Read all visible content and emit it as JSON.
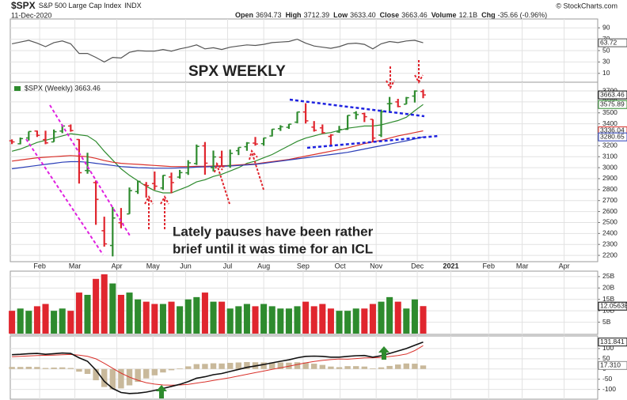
{
  "header": {
    "symbol": "$SPX",
    "name": "S&P 500 Large Cap Index",
    "exchange": "INDX",
    "date": "11-Dec-2020",
    "credit": "© StockCharts.com",
    "quote": [
      {
        "label": "Open",
        "value": "3694.73"
      },
      {
        "label": "High",
        "value": "3712.39"
      },
      {
        "label": "Low",
        "value": "3633.40"
      },
      {
        "label": "Close",
        "value": "3663.46"
      },
      {
        "label": "Volume",
        "value": "12.1B"
      },
      {
        "label": "Chg",
        "value": "-35.66 (-0.96%)"
      }
    ]
  },
  "annotations": {
    "title": "SPX WEEKLY",
    "note": [
      "Lately pauses have been rather",
      "brief until it was time for an ICL"
    ]
  },
  "chart_data": [
    {
      "type": "line",
      "color": "#555555",
      "ylim": [
        0,
        100
      ],
      "yticks": [
        90,
        70,
        50,
        30,
        10
      ],
      "grid": true,
      "values": [
        62,
        65,
        68,
        63,
        57,
        64,
        67,
        62,
        45,
        45,
        38,
        30,
        38,
        37,
        47,
        50,
        49,
        49,
        52,
        49,
        53,
        56,
        60,
        53,
        55,
        52,
        56,
        58,
        60,
        59,
        61,
        64,
        65,
        66,
        70,
        63,
        58,
        56,
        54,
        57,
        62,
        63,
        61,
        53,
        62,
        66,
        64,
        67,
        68,
        63.72
      ]
    },
    {
      "type": "ohlc",
      "label": "$SPX (Weekly) 3663.46",
      "up_color": "#2e8b2e",
      "down_color": "#e0262e",
      "grid": true,
      "ylim": [
        2150,
        3765
      ],
      "yticks": [
        2200,
        2300,
        2400,
        2500,
        2600,
        2700,
        2800,
        2900,
        3000,
        3100,
        3200,
        3300,
        3400,
        3500,
        3600,
        3700
      ],
      "xlim": [
        -0.2,
        69.8
      ],
      "xticks": [
        {
          "value": 3.3,
          "label": "Feb"
        },
        {
          "value": 7.5,
          "label": "Mar"
        },
        {
          "value": 12.5,
          "label": "Apr"
        },
        {
          "value": 16.8,
          "label": "May"
        },
        {
          "value": 20.7,
          "label": "Jun"
        },
        {
          "value": 25.7,
          "label": "Jul"
        },
        {
          "value": 30.0,
          "label": "Aug"
        },
        {
          "value": 34.7,
          "label": "Sep"
        },
        {
          "value": 39.1,
          "label": "Oct"
        },
        {
          "value": 43.4,
          "label": "Nov"
        },
        {
          "value": 48.3,
          "label": "Dec"
        },
        {
          "value": 52.3,
          "label": "2021"
        },
        {
          "value": 56.8,
          "label": "Feb"
        },
        {
          "value": 60.8,
          "label": "Mar"
        },
        {
          "value": 65.8,
          "label": "Apr"
        }
      ],
      "open": [
        3245,
        3218,
        3271,
        3334,
        3256,
        3235,
        3334,
        3380,
        3257,
        2974,
        2864,
        2425,
        2290,
        2498,
        2578,
        2782,
        2845,
        2855,
        2815,
        2915,
        2914,
        2953,
        3038,
        3199,
        3000,
        3095,
        3018,
        3155,
        3191,
        3224,
        3219,
        3289,
        3356,
        3368,
        3415,
        3508,
        3370,
        3363,
        3285,
        3326,
        3350,
        3500,
        3493,
        3441,
        3297,
        3583,
        3600,
        3579,
        3653,
        3694.73
      ],
      "high": [
        3258,
        3275,
        3330,
        3338,
        3337,
        3348,
        3385,
        3394,
        3260,
        3136,
        2883,
        2553,
        2641,
        2632,
        2819,
        2880,
        2869,
        2965,
        2932,
        2955,
        2980,
        3068,
        3211,
        3234,
        3156,
        3155,
        3165,
        3185,
        3233,
        3280,
        3272,
        3352,
        3387,
        3399,
        3509,
        3588,
        3425,
        3394,
        3306,
        3381,
        3478,
        3515,
        3502,
        3441,
        3530,
        3645,
        3628,
        3645,
        3705,
        3712.39
      ],
      "low": [
        3215,
        3213,
        3247,
        3280,
        3214,
        3235,
        3315,
        3328,
        2855,
        2945,
        2479,
        2280,
        2191,
        2447,
        2578,
        2761,
        2727,
        2797,
        2797,
        2767,
        2900,
        2934,
        3025,
        2936,
        2966,
        3008,
        2999,
        3115,
        3154,
        3201,
        3200,
        3285,
        3335,
        3354,
        3405,
        3403,
        3329,
        3310,
        3209,
        3317,
        3345,
        3441,
        3416,
        3233,
        3279,
        3512,
        3551,
        3579,
        3594,
        3633.4
      ],
      "close": [
        3235,
        3265,
        3330,
        3295,
        3226,
        3328,
        3380,
        3338,
        2954,
        2972,
        2711,
        2305,
        2541,
        2489,
        2790,
        2875,
        2837,
        2831,
        2930,
        2864,
        2955,
        3044,
        3194,
        3041,
        3098,
        3009,
        3130,
        3185,
        3225,
        3216,
        3271,
        3351,
        3373,
        3397,
        3508,
        3427,
        3341,
        3319,
        3298,
        3348,
        3477,
        3484,
        3465,
        3270,
        3510,
        3585,
        3558,
        3638,
        3699,
        3663.46
      ],
      "overlays": [
        {
          "color": "#2e8b2e",
          "values": [
            3150,
            3170,
            3200,
            3230,
            3250,
            3270,
            3290,
            3310,
            3300,
            3290,
            3240,
            3150,
            3070,
            2990,
            2930,
            2880,
            2830,
            2790,
            2770,
            2770,
            2800,
            2830,
            2870,
            2890,
            2920,
            2940,
            2970,
            3000,
            3040,
            3060,
            3090,
            3120,
            3160,
            3200,
            3240,
            3270,
            3290,
            3310,
            3320,
            3340,
            3360,
            3370,
            3380,
            3380,
            3390,
            3410,
            3430,
            3460,
            3520,
            3575.89
          ]
        },
        {
          "color": "#d9312b",
          "values": [
            3060,
            3070,
            3080,
            3090,
            3095,
            3100,
            3105,
            3110,
            3105,
            3100,
            3085,
            3065,
            3050,
            3040,
            3035,
            3030,
            3025,
            3020,
            3015,
            3010,
            3010,
            3010,
            3012,
            3012,
            3015,
            3018,
            3020,
            3025,
            3030,
            3035,
            3045,
            3055,
            3065,
            3075,
            3090,
            3105,
            3120,
            3135,
            3150,
            3165,
            3180,
            3200,
            3220,
            3235,
            3250,
            3270,
            3290,
            3305,
            3320,
            3336.04
          ]
        },
        {
          "color": "#2b3fb8",
          "values": [
            2990,
            3000,
            3010,
            3020,
            3030,
            3040,
            3050,
            3055,
            3055,
            3050,
            3040,
            3030,
            3020,
            3010,
            3005,
            3000,
            2998,
            2995,
            2995,
            2995,
            2998,
            3000,
            3005,
            3008,
            3010,
            3012,
            3015,
            3020,
            3025,
            3030,
            3040,
            3050,
            3060,
            3070,
            3080,
            3090,
            3100,
            3110,
            3120,
            3130,
            3140,
            3155,
            3170,
            3185,
            3200,
            3215,
            3230,
            3245,
            3262,
            3280.65
          ]
        }
      ]
    },
    {
      "type": "bar",
      "grid": true,
      "ylim": [
        0,
        26.7
      ],
      "yticks": [
        {
          "value": 25,
          "label": "25B"
        },
        {
          "value": 20,
          "label": "20B"
        },
        {
          "value": 15,
          "label": "15B"
        },
        {
          "value": 10,
          "label": "10B"
        },
        {
          "value": 5,
          "label": "5B"
        }
      ],
      "values": [
        10,
        11,
        10,
        12,
        13,
        10,
        11,
        10,
        18,
        17,
        24,
        26,
        22,
        17,
        18,
        15,
        14,
        13,
        13,
        14,
        12,
        15,
        16,
        18,
        14,
        14,
        11,
        12,
        13,
        12,
        13,
        12,
        11,
        11,
        12,
        14,
        12,
        13,
        11,
        10,
        10,
        11,
        11,
        13,
        14,
        16,
        14,
        11,
        15,
        12.0563
      ],
      "value_labels": [
        null,
        null,
        null,
        null,
        null,
        null,
        null,
        null,
        null,
        null,
        null,
        null,
        null,
        null,
        null,
        null,
        null,
        null,
        null,
        null,
        null,
        null,
        null,
        null,
        null,
        null,
        null,
        null,
        null,
        null,
        null,
        null,
        null,
        null,
        null,
        null,
        null,
        null,
        null,
        null,
        null,
        null,
        null,
        null,
        null,
        null,
        null,
        null,
        null,
        "12.0563B"
      ]
    },
    {
      "type": "macd",
      "grid": true,
      "ylim": [
        -140,
        150
      ],
      "yticks": [
        100,
        50,
        0,
        -50,
        -100
      ],
      "macd": {
        "color": "#111111",
        "values": [
          70,
          72,
          75,
          76,
          72,
          75,
          78,
          76,
          55,
          38,
          -5,
          -60,
          -95,
          -115,
          -120,
          -118,
          -113,
          -105,
          -95,
          -85,
          -75,
          -62,
          -45,
          -38,
          -28,
          -22,
          -12,
          -2,
          8,
          15,
          22,
          30,
          38,
          45,
          55,
          62,
          63,
          62,
          58,
          58,
          62,
          65,
          66,
          58,
          65,
          76,
          88,
          100,
          116,
          131.841
        ]
      },
      "signal": {
        "color": "#d9312b",
        "values": [
          60,
          62,
          64,
          66,
          67,
          68,
          70,
          71,
          68,
          62,
          50,
          28,
          4,
          -20,
          -40,
          -55,
          -67,
          -74,
          -78,
          -79,
          -78,
          -75,
          -69,
          -63,
          -56,
          -49,
          -42,
          -34,
          -26,
          -18,
          -10,
          -2,
          6,
          14,
          22,
          30,
          37,
          42,
          46,
          49,
          48,
          51,
          54,
          55,
          57,
          61,
          66,
          73,
          90,
          114.531
        ]
      },
      "histogram": {
        "color": "#c9b99b",
        "values": [
          10,
          10,
          11,
          10,
          5,
          7,
          8,
          5,
          -13,
          -24,
          -55,
          -88,
          -99,
          -95,
          -80,
          -63,
          -46,
          -31,
          -17,
          -6,
          3,
          13,
          24,
          25,
          28,
          27,
          30,
          32,
          34,
          33,
          32,
          32,
          32,
          31,
          33,
          32,
          26,
          20,
          12,
          9,
          14,
          14,
          12,
          3,
          8,
          15,
          22,
          27,
          26,
          17.31
        ],
        "value_labels": [
          null,
          null,
          null,
          null,
          null,
          null,
          null,
          null,
          null,
          null,
          null,
          null,
          null,
          null,
          null,
          null,
          null,
          null,
          null,
          null,
          null,
          null,
          null,
          null,
          null,
          null,
          null,
          null,
          null,
          null,
          null,
          null,
          null,
          null,
          null,
          null,
          null,
          null,
          null,
          null,
          null,
          null,
          null,
          null,
          null,
          null,
          null,
          null,
          null,
          "17.310"
        ]
      }
    }
  ]
}
